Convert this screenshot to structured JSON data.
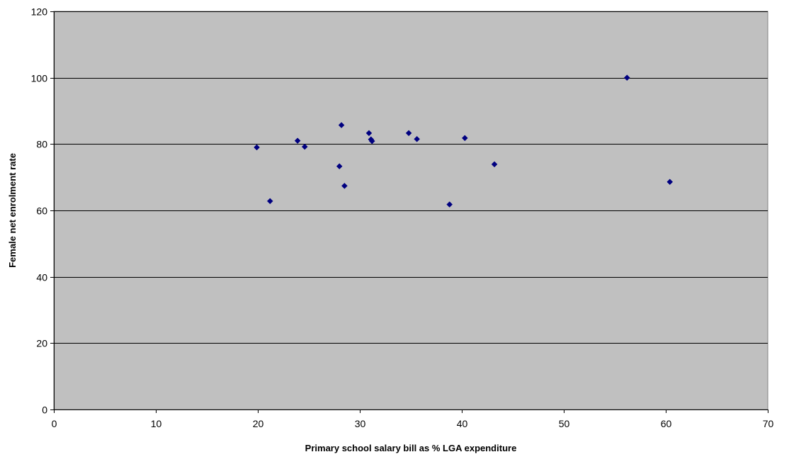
{
  "chart_data": {
    "type": "scatter",
    "title": "",
    "xlabel": "Primary school salary bill as % LGA expenditure",
    "ylabel": "Female net enrolment rate",
    "xlim": [
      0,
      70
    ],
    "ylim": [
      0,
      120
    ],
    "xticks": [
      "0",
      "10",
      "20",
      "30",
      "40",
      "50",
      "60",
      "70"
    ],
    "yticks": [
      "0",
      "20",
      "40",
      "60",
      "80",
      "100",
      "120"
    ],
    "grid": "horizontal",
    "legend": "none",
    "plot_background": "#c0c0c0",
    "marker_color": "#000080",
    "marker_shape": "diamond",
    "points": [
      {
        "x": 19.9,
        "y": 79.0
      },
      {
        "x": 21.2,
        "y": 62.8
      },
      {
        "x": 23.9,
        "y": 81.0
      },
      {
        "x": 24.6,
        "y": 79.2
      },
      {
        "x": 28.0,
        "y": 73.3
      },
      {
        "x": 28.2,
        "y": 85.7
      },
      {
        "x": 28.5,
        "y": 67.4
      },
      {
        "x": 30.9,
        "y": 83.3
      },
      {
        "x": 31.1,
        "y": 81.4
      },
      {
        "x": 31.2,
        "y": 80.9
      },
      {
        "x": 34.8,
        "y": 83.3
      },
      {
        "x": 35.6,
        "y": 81.5
      },
      {
        "x": 38.8,
        "y": 61.8
      },
      {
        "x": 40.3,
        "y": 81.8
      },
      {
        "x": 43.2,
        "y": 73.9
      },
      {
        "x": 56.2,
        "y": 100.0
      },
      {
        "x": 60.4,
        "y": 68.6
      }
    ]
  }
}
